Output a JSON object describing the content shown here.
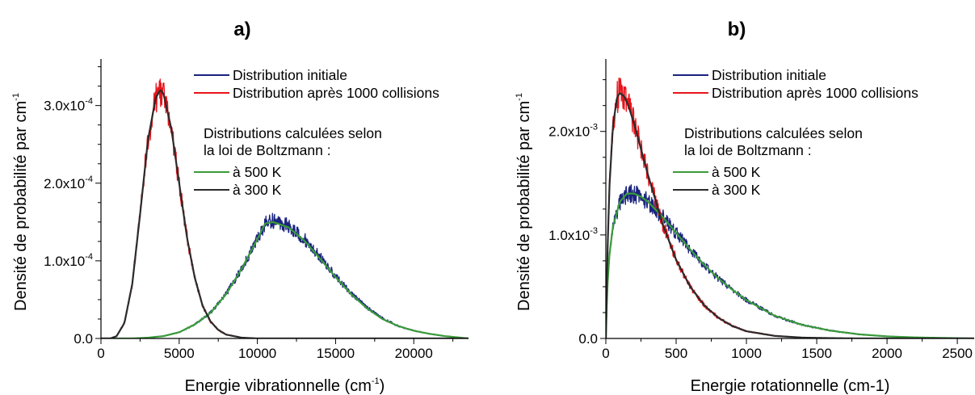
{
  "chart_data": [
    {
      "panel_label": "a)",
      "type": "line",
      "xlabel": "Energie vibrationnelle (cm",
      "xlabel_sup": "-1",
      "xlabel_end": ")",
      "ylabel": "Densité de probabilité par cm",
      "ylabel_sup": "-1",
      "xlim": [
        0,
        23500
      ],
      "ylim": [
        0,
        0.00036
      ],
      "x_ticks": [
        0,
        5000,
        10000,
        15000,
        20000
      ],
      "x_tick_labels": [
        "0",
        "5000",
        "10000",
        "15000",
        "20000"
      ],
      "y_ticks": [
        0,
        0.0001,
        0.0002,
        0.0003
      ],
      "y_tick_labels": [
        {
          "base": "0.0",
          "exp": ""
        },
        {
          "base": "1.0x10",
          "exp": "-4"
        },
        {
          "base": "2.0x10",
          "exp": "-4"
        },
        {
          "base": "3.0x10",
          "exp": "-4"
        }
      ],
      "legend_lines": [
        {
          "text": "Distribution initiale",
          "color": "#1a237e"
        },
        {
          "text": "Distribution après 1000 collisions",
          "color": "#e8141b"
        }
      ],
      "legend_note": [
        "Distributions calculées selon",
        "la loi de Boltzmann :"
      ],
      "legend_fits": [
        {
          "text": "à 500 K",
          "color": "#3a9b3a"
        },
        {
          "text": "à 300 K",
          "color": "#2b2b2b"
        }
      ],
      "series": [
        {
          "name": "Distribution initiale",
          "color": "#1a237e",
          "noisy": true,
          "x": [
            0,
            2000,
            3000,
            4000,
            5000,
            6000,
            7000,
            8000,
            9000,
            10000,
            10500,
            11000,
            12000,
            13000,
            14000,
            15000,
            16000,
            17000,
            18000,
            19000,
            20000,
            21000,
            22000,
            23000,
            23500
          ],
          "y": [
            0,
            0,
            1e-06,
            3e-06,
            8e-06,
            1.8e-05,
            3.3e-05,
            5.7e-05,
            9e-05,
            0.000128,
            0.000148,
            0.000152,
            0.000145,
            0.000128,
            0.000105,
            8e-05,
            5.8e-05,
            4e-05,
            2.6e-05,
            1.6e-05,
            1e-05,
            6e-06,
            3e-06,
            1e-06,
            0
          ]
        },
        {
          "name": "Distribution après 1000 collisions",
          "color": "#e8141b",
          "noisy": true,
          "x": [
            0,
            600,
            1000,
            1500,
            2000,
            2500,
            3000,
            3500,
            3800,
            4000,
            4500,
            5000,
            5500,
            6000,
            6500,
            7000,
            7500,
            8000,
            9000,
            10000,
            11000,
            12000,
            23500
          ],
          "y": [
            0,
            0,
            3e-06,
            2e-05,
            7e-05,
            0.00016,
            0.000255,
            0.00031,
            0.00032,
            0.000315,
            0.00027,
            0.0002,
            0.00013,
            7.8e-05,
            4.2e-05,
            2.2e-05,
            1.1e-05,
            5e-06,
            1e-06,
            0,
            0,
            0,
            0
          ]
        },
        {
          "name": "à 500 K",
          "color": "#3a9b3a",
          "noisy": false,
          "x": [
            0,
            2000,
            3000,
            4000,
            5000,
            6000,
            7000,
            8000,
            9000,
            10000,
            10500,
            11000,
            12000,
            13000,
            14000,
            15000,
            16000,
            17000,
            18000,
            19000,
            20000,
            21000,
            22000,
            23000,
            23500
          ],
          "y": [
            0,
            0,
            1e-06,
            3e-06,
            8e-06,
            1.8e-05,
            3.3e-05,
            5.7e-05,
            9e-05,
            0.000128,
            0.000148,
            0.00015,
            0.000143,
            0.000126,
            0.000103,
            7.9e-05,
            5.7e-05,
            3.9e-05,
            2.5e-05,
            1.6e-05,
            1e-05,
            6e-06,
            3e-06,
            1e-06,
            0
          ]
        },
        {
          "name": "à 300 K",
          "color": "#2b2b2b",
          "noisy": false,
          "x": [
            0,
            600,
            1000,
            1500,
            2000,
            2500,
            3000,
            3500,
            3800,
            4000,
            4500,
            5000,
            5500,
            6000,
            6500,
            7000,
            7500,
            8000,
            9000,
            10000,
            11000,
            12000,
            23500
          ],
          "y": [
            0,
            0,
            3e-06,
            2e-05,
            7e-05,
            0.00016,
            0.000255,
            0.00031,
            0.00032,
            0.000315,
            0.00027,
            0.0002,
            0.00013,
            7.8e-05,
            4.2e-05,
            2.2e-05,
            1.1e-05,
            5e-06,
            1e-06,
            0,
            0,
            0,
            0
          ]
        }
      ]
    },
    {
      "panel_label": "b)",
      "type": "line",
      "xlabel": "Energie rotationnelle (cm-1)",
      "xlabel_sup": "",
      "xlabel_end": "",
      "ylabel": "Densité de probabilité par cm",
      "ylabel_sup": "-1",
      "xlim": [
        0,
        2620
      ],
      "ylim": [
        0,
        0.0027
      ],
      "x_ticks": [
        0,
        500,
        1000,
        1500,
        2000,
        2500
      ],
      "x_tick_labels": [
        "0",
        "500",
        "1000",
        "1500",
        "2000",
        "2500"
      ],
      "y_ticks": [
        0,
        0.001,
        0.002
      ],
      "y_tick_labels": [
        {
          "base": "0.0",
          "exp": ""
        },
        {
          "base": "1.0x10",
          "exp": "-3"
        },
        {
          "base": "2.0x10",
          "exp": "-3"
        }
      ],
      "legend_lines": [
        {
          "text": "Distribution initiale",
          "color": "#1a237e"
        },
        {
          "text": "Distribution après 1000 collisions",
          "color": "#e8141b"
        }
      ],
      "legend_note": [
        "Distributions calculées selon",
        "la loi de Boltzmann :"
      ],
      "legend_fits": [
        {
          "text": "à 500 K",
          "color": "#3a9b3a"
        },
        {
          "text": "à 300 K",
          "color": "#2b2b2b"
        }
      ],
      "series": [
        {
          "name": "Distribution initiale",
          "color": "#1a237e",
          "noisy": true,
          "x": [
            0,
            10,
            25,
            50,
            100,
            150,
            200,
            250,
            300,
            400,
            500,
            600,
            700,
            800,
            900,
            1000,
            1200,
            1400,
            1600,
            1800,
            2000,
            2200,
            2400,
            2620
          ],
          "y": [
            0,
            0.00048,
            0.0008,
            0.00108,
            0.00132,
            0.0014,
            0.0014,
            0.00137,
            0.00132,
            0.00118,
            0.00102,
            0.00086,
            0.00071,
            0.00058,
            0.00047,
            0.00037,
            0.00022,
            0.00013,
            7.5e-05,
            4e-05,
            2e-05,
            1e-05,
            5e-06,
            0
          ]
        },
        {
          "name": "Distribution après 1000 collisions",
          "color": "#e8141b",
          "noisy": true,
          "x": [
            0,
            10,
            25,
            50,
            80,
            100,
            130,
            160,
            200,
            250,
            300,
            400,
            500,
            600,
            700,
            800,
            900,
            1000,
            1200,
            1400,
            1600,
            1800,
            2620
          ],
          "y": [
            0,
            0.00075,
            0.00145,
            0.00205,
            0.00233,
            0.00237,
            0.00234,
            0.00225,
            0.00208,
            0.00183,
            0.00158,
            0.00112,
            0.00076,
            0.0005,
            0.00032,
            0.0002,
            0.00012,
            7e-05,
            2.5e-05,
            8e-06,
            3e-06,
            0,
            0
          ]
        },
        {
          "name": "à 500 K",
          "color": "#3a9b3a",
          "noisy": false,
          "x": [
            0,
            10,
            25,
            50,
            100,
            150,
            200,
            250,
            300,
            400,
            500,
            600,
            700,
            800,
            900,
            1000,
            1200,
            1400,
            1600,
            1800,
            2000,
            2200,
            2400,
            2620
          ],
          "y": [
            0,
            0.00048,
            0.0008,
            0.00108,
            0.00132,
            0.0014,
            0.0014,
            0.00137,
            0.00132,
            0.00118,
            0.00102,
            0.00086,
            0.00071,
            0.00058,
            0.00047,
            0.00037,
            0.00022,
            0.00013,
            7.5e-05,
            4e-05,
            2e-05,
            1e-05,
            5e-06,
            0
          ]
        },
        {
          "name": "à 300 K",
          "color": "#2b2b2b",
          "noisy": false,
          "x": [
            0,
            10,
            25,
            50,
            80,
            100,
            130,
            160,
            200,
            250,
            300,
            400,
            500,
            600,
            700,
            800,
            900,
            1000,
            1200,
            1400,
            1600,
            1800,
            2620
          ],
          "y": [
            0,
            0.00075,
            0.00145,
            0.00205,
            0.00233,
            0.00237,
            0.00234,
            0.00225,
            0.00208,
            0.00183,
            0.00158,
            0.00112,
            0.00076,
            0.0005,
            0.00032,
            0.0002,
            0.00012,
            7e-05,
            2.5e-05,
            8e-06,
            3e-06,
            0,
            0
          ]
        }
      ]
    }
  ]
}
